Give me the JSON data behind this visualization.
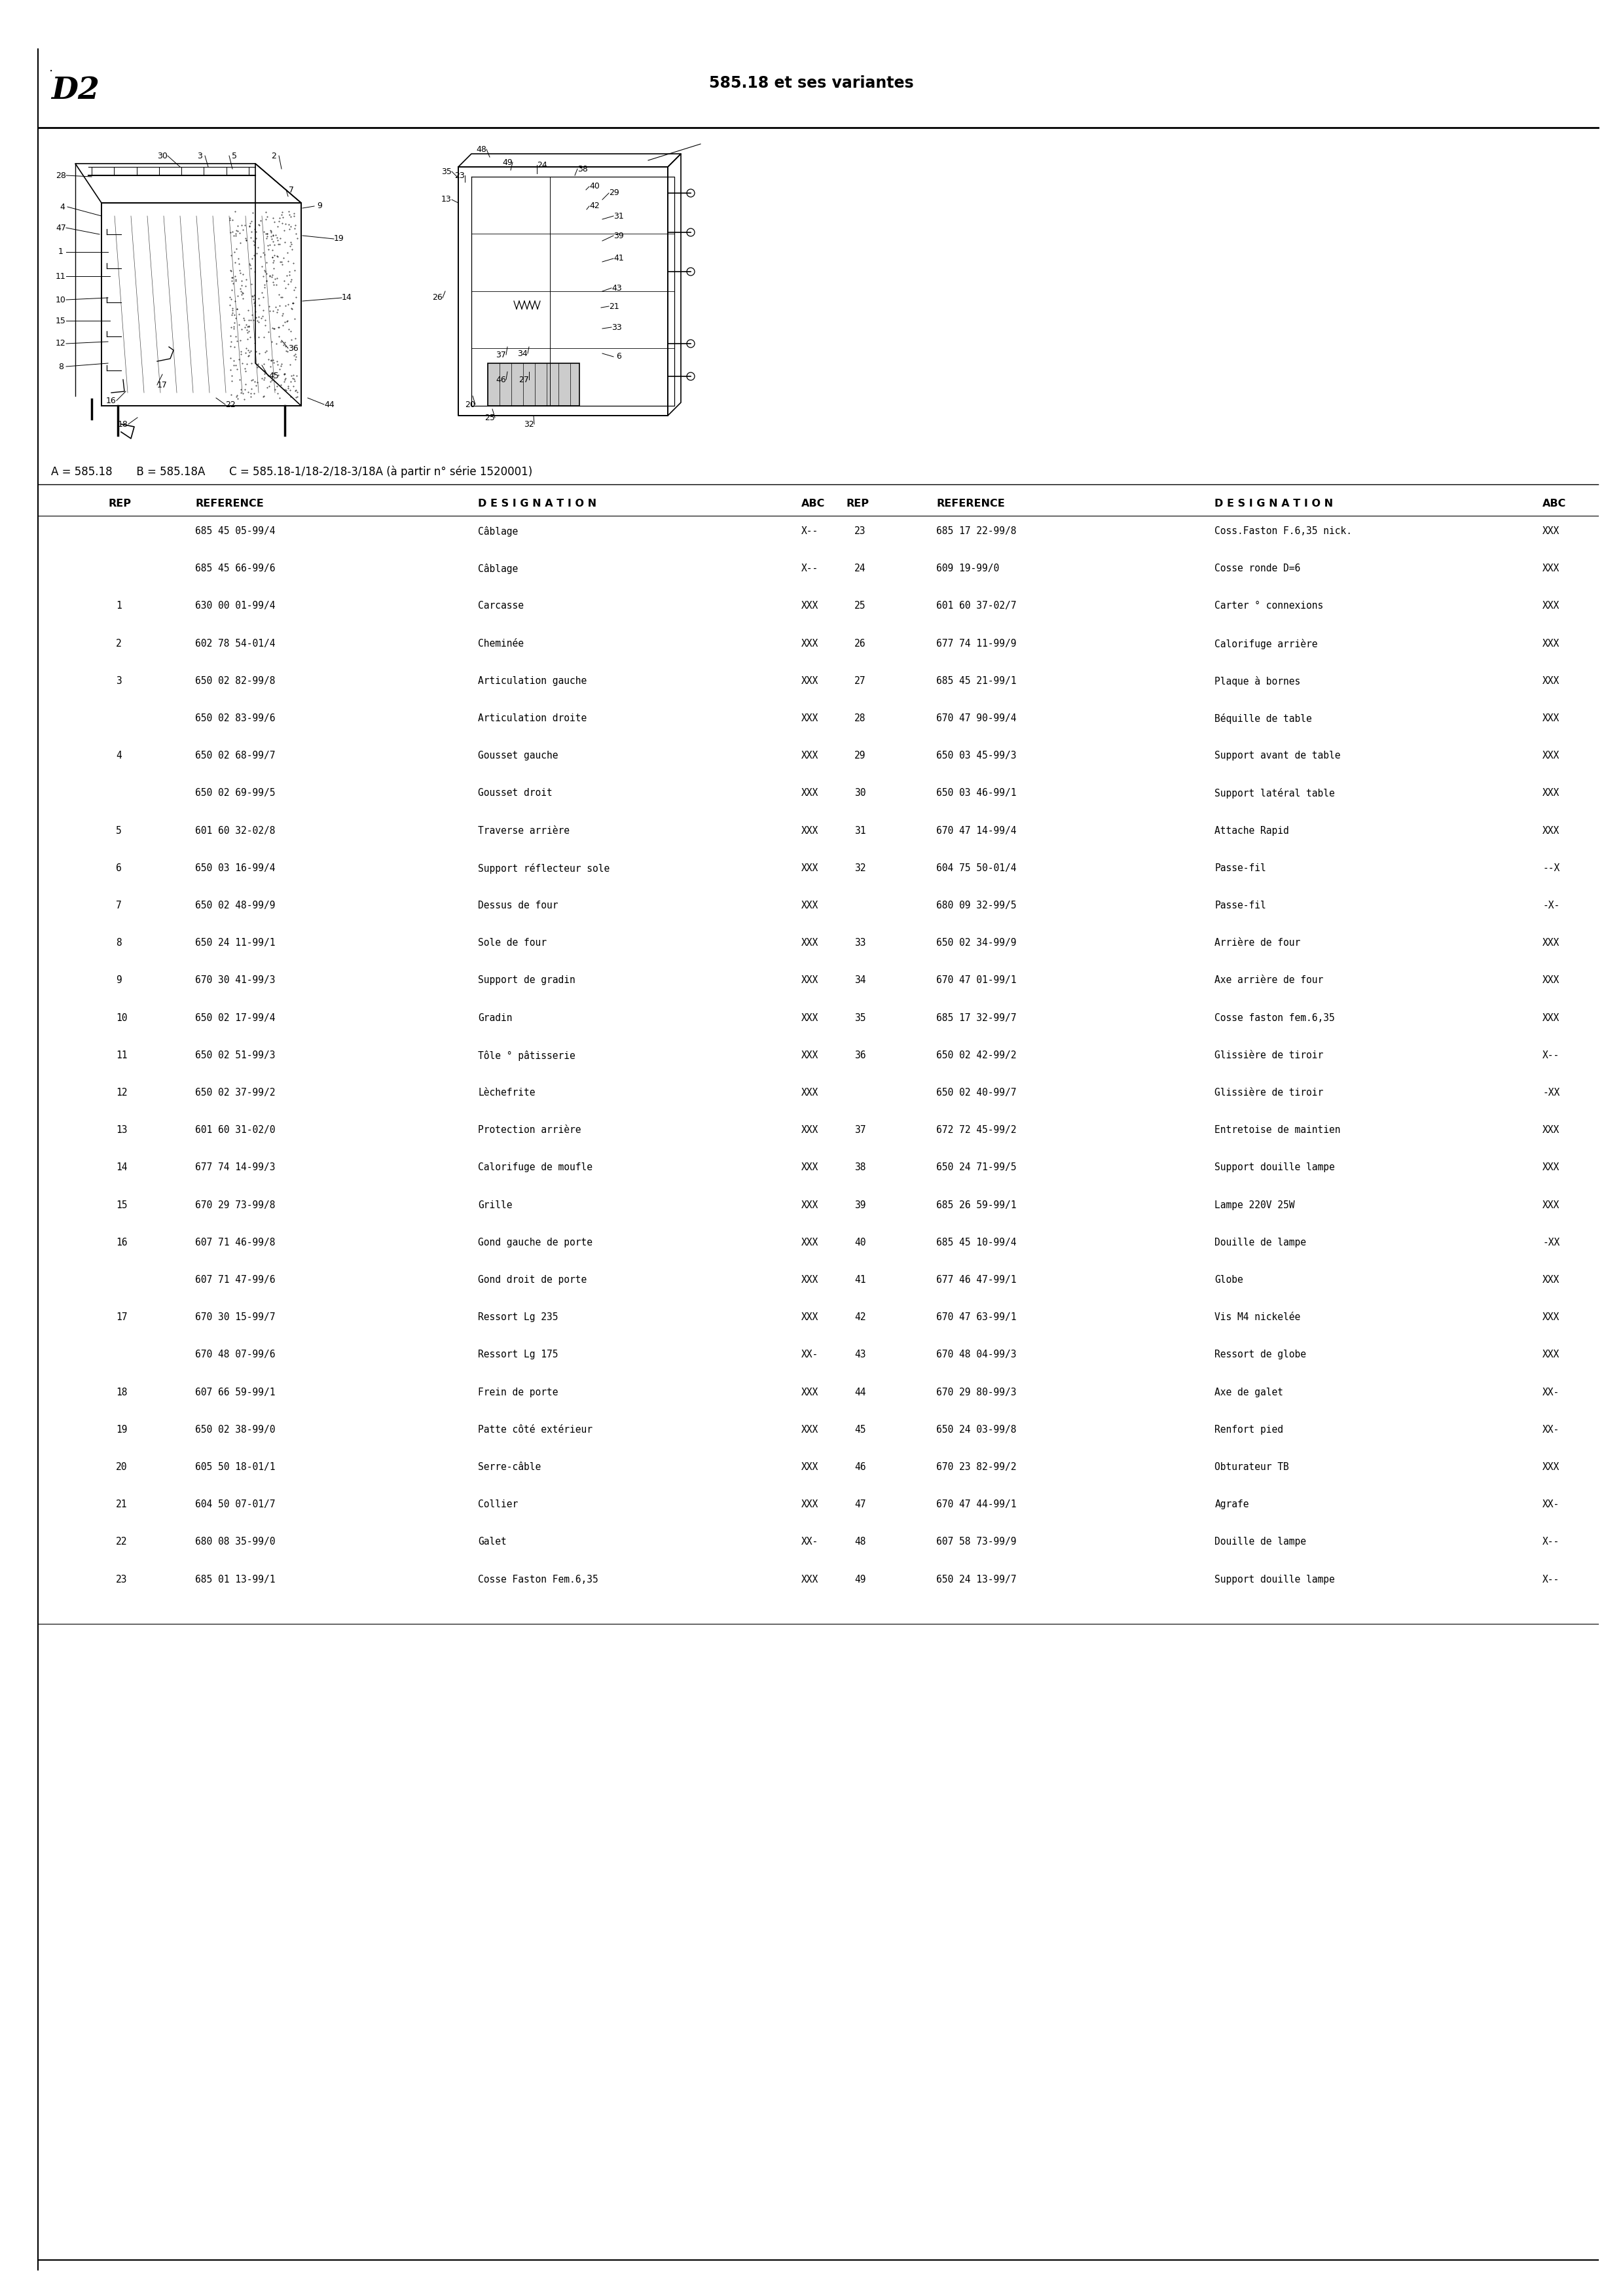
{
  "page_label": "D2",
  "title": "585.18 et ses variantes",
  "subtitle": "A = 585.18       B = 585.18A       C = 585.18-1/18-2/18-3/18A (à partir n° série 1520001)",
  "parts": [
    [
      "",
      "685 45 05-99/4",
      "Câblage",
      "X--",
      "23",
      "685 17 22-99/8",
      "Coss.Faston F.6,35 nick.XXX"
    ],
    [
      "",
      "685 45 66-99/6",
      "Câblage",
      "X--",
      "24",
      "609 19-99/0",
      "Cosse ronde D=6           XXX"
    ],
    [
      "1",
      "630 00 01-99/4",
      "Carcasse",
      "XXX",
      "25",
      "601 60 37-02/7",
      "Carter ° connexions       XXX"
    ],
    [
      "2",
      "602 78 54-01/4",
      "Cheminée",
      "XXX",
      "26",
      "677 74 11-99/9",
      "Calorifuge arrière        XXX"
    ],
    [
      "3",
      "650 02 82-99/8",
      "Articulation gauche",
      "XXX",
      "27",
      "685 45 21-99/1",
      "Plaque à bornes           XXX"
    ],
    [
      "",
      "650 02 83-99/6",
      "Articulation droite",
      "XXX",
      "28",
      "670 47 90-99/4",
      "Béquille de table         XXX"
    ],
    [
      "4",
      "650 02 68-99/7",
      "Gousset gauche",
      "XXX",
      "29",
      "650 03 45-99/3",
      "Support avant de table    XXX"
    ],
    [
      "",
      "650 02 69-99/5",
      "Gousset droit",
      "XXX",
      "30",
      "650 03 46-99/1",
      "Support latéral table     XXX"
    ],
    [
      "5",
      "601 60 32-02/8",
      "Traverse arrière",
      "XXX",
      "31",
      "670 47 14-99/4",
      "Attache Rapid             XXX"
    ],
    [
      "6",
      "650 03 16-99/4",
      "Support réflecteur sole XXX",
      "",
      "32",
      "604 75 50-01/4",
      "Passe-fil                 --X"
    ],
    [
      "7",
      "650 02 48-99/9",
      "Dessus de four",
      "XXX",
      "",
      "680 09 32-99/5",
      "Passe-fil                 -X-"
    ],
    [
      "8",
      "650 24 11-99/1",
      "Sole de four",
      "XXX",
      "33",
      "650 02 34-99/9",
      "Arrière de four           XXX"
    ],
    [
      "9",
      "670 30 41-99/3",
      "Support de gradin",
      "XXX",
      "34",
      "670 47 01-99/1",
      "Axe arrière de four       XXX"
    ],
    [
      "10",
      "650 02 17-99/4",
      "Gradin",
      "XXX",
      "35",
      "685 17 32-99/7",
      "Cosse faston fem.6,35     XXX"
    ],
    [
      "11",
      "650 02 51-99/3",
      "Tôle ° pâtisserie",
      "XXX",
      "36",
      "650 02 42-99/2",
      "Glissière de tiroir       X--"
    ],
    [
      "12",
      "650 02 37-99/2",
      "Lèchefrite",
      "XXX",
      "",
      "650 02 40-99/7",
      "Glissière de tiroir       -XX"
    ],
    [
      "13",
      "601 60 31-02/0",
      "Protection arrière",
      "XXX",
      "37",
      "672 72 45-99/2",
      "Entretoise de maintien    XXX"
    ],
    [
      "14",
      "677 74 14-99/3",
      "Calorifuge de moufle",
      "XXX",
      "38",
      "650 24 71-99/5",
      "Support douille lampe     XXX"
    ],
    [
      "15",
      "670 29 73-99/8",
      "Grille",
      "XXX",
      "39",
      "685 26 59-99/1",
      "Lampe 220V 25W            XXX"
    ],
    [
      "16",
      "607 71 46-99/8",
      "Gond gauche de porte",
      "XXX",
      "40",
      "685 45 10-99/4",
      "Douille de lampe          -XX"
    ],
    [
      "",
      "607 71 47-99/6",
      "Gond droit de porte",
      "XXX",
      "41",
      "677 46 47-99/1",
      "Globe                     XXX"
    ],
    [
      "17",
      "670 30 15-99/7",
      "Ressort Lg 235",
      "XXX",
      "42",
      "670 47 63-99/1",
      "Vis M4 nickelée           XXX"
    ],
    [
      "",
      "670 48 07-99/6",
      "Ressort Lg 175",
      "XX-",
      "43",
      "670 48 04-99/3",
      "Ressort de globe          XXX"
    ],
    [
      "18",
      "607 66 59-99/1",
      "Frein de porte",
      "XXX",
      "44",
      "670 29 80-99/3",
      "Axe de galet              XX-"
    ],
    [
      "19",
      "650 02 38-99/0",
      "Patte côté extérieur",
      "XXX",
      "45",
      "650 24 03-99/8",
      "Renfort pied              XX-"
    ],
    [
      "20",
      "605 50 18-01/1",
      "Serre-câble",
      "XXX",
      "46",
      "670 23 82-99/2",
      "Obturateur TB             XXX"
    ],
    [
      "21",
      "604 50 07-01/7",
      "Collier",
      "XXX",
      "47",
      "670 47 44-99/1",
      "Agrafe                    XX-"
    ],
    [
      "22",
      "680 08 35-99/0",
      "Galet",
      "XX-",
      "48",
      "607 58 73-99/9",
      "Douille de lampe          X--"
    ],
    [
      "23",
      "685 01 13-99/1",
      "Cosse Faston Fem.6,35",
      "XXX",
      "49",
      "650 24 13-99/7",
      "Support douille lampe     X--"
    ]
  ],
  "parts_clean": [
    [
      "",
      "685 45 05-99/4",
      "Câblage",
      "X--",
      "23",
      "685 17 22-99/8",
      "Coss.Faston F.6,35 nick.",
      "XXX"
    ],
    [
      "",
      "685 45 66-99/6",
      "Câblage",
      "X--",
      "24",
      "609 19-99/0",
      "Cosse ronde D=6",
      "XXX"
    ],
    [
      "1",
      "630 00 01-99/4",
      "Carcasse",
      "XXX",
      "25",
      "601 60 37-02/7",
      "Carter ° connexions",
      "XXX"
    ],
    [
      "2",
      "602 78 54-01/4",
      "Cheminée",
      "XXX",
      "26",
      "677 74 11-99/9",
      "Calorifuge arrière",
      "XXX"
    ],
    [
      "3",
      "650 02 82-99/8",
      "Articulation gauche",
      "XXX",
      "27",
      "685 45 21-99/1",
      "Plaque à bornes",
      "XXX"
    ],
    [
      "",
      "650 02 83-99/6",
      "Articulation droite",
      "XXX",
      "28",
      "670 47 90-99/4",
      "Béquille de table",
      "XXX"
    ],
    [
      "4",
      "650 02 68-99/7",
      "Gousset gauche",
      "XXX",
      "29",
      "650 03 45-99/3",
      "Support avant de table",
      "XXX"
    ],
    [
      "",
      "650 02 69-99/5",
      "Gousset droit",
      "XXX",
      "30",
      "650 03 46-99/1",
      "Support latéral table",
      "XXX"
    ],
    [
      "5",
      "601 60 32-02/8",
      "Traverse arrière",
      "XXX",
      "31",
      "670 47 14-99/4",
      "Attache Rapid",
      "XXX"
    ],
    [
      "6",
      "650 03 16-99/4",
      "Support réflecteur sole",
      "XXX",
      "32",
      "604 75 50-01/4",
      "Passe-fil",
      "--X"
    ],
    [
      "7",
      "650 02 48-99/9",
      "Dessus de four",
      "XXX",
      "",
      "680 09 32-99/5",
      "Passe-fil",
      "-X-"
    ],
    [
      "8",
      "650 24 11-99/1",
      "Sole de four",
      "XXX",
      "33",
      "650 02 34-99/9",
      "Arrière de four",
      "XXX"
    ],
    [
      "9",
      "670 30 41-99/3",
      "Support de gradin",
      "XXX",
      "34",
      "670 47 01-99/1",
      "Axe arrière de four",
      "XXX"
    ],
    [
      "10",
      "650 02 17-99/4",
      "Gradin",
      "XXX",
      "35",
      "685 17 32-99/7",
      "Cosse faston fem.6,35",
      "XXX"
    ],
    [
      "11",
      "650 02 51-99/3",
      "Tôle ° pâtisserie",
      "XXX",
      "36",
      "650 02 42-99/2",
      "Glissière de tiroir",
      "X--"
    ],
    [
      "12",
      "650 02 37-99/2",
      "Lèchefrite",
      "XXX",
      "",
      "650 02 40-99/7",
      "Glissière de tiroir",
      "-XX"
    ],
    [
      "13",
      "601 60 31-02/0",
      "Protection arrière",
      "XXX",
      "37",
      "672 72 45-99/2",
      "Entretoise de maintien",
      "XXX"
    ],
    [
      "14",
      "677 74 14-99/3",
      "Calorifuge de moufle",
      "XXX",
      "38",
      "650 24 71-99/5",
      "Support douille lampe",
      "XXX"
    ],
    [
      "15",
      "670 29 73-99/8",
      "Grille",
      "XXX",
      "39",
      "685 26 59-99/1",
      "Lampe 220V 25W",
      "XXX"
    ],
    [
      "16",
      "607 71 46-99/8",
      "Gond gauche de porte",
      "XXX",
      "40",
      "685 45 10-99/4",
      "Douille de lampe",
      "-XX"
    ],
    [
      "",
      "607 71 47-99/6",
      "Gond droit de porte",
      "XXX",
      "41",
      "677 46 47-99/1",
      "Globe",
      "XXX"
    ],
    [
      "17",
      "670 30 15-99/7",
      "Ressort Lg 235",
      "XXX",
      "42",
      "670 47 63-99/1",
      "Vis M4 nickelée",
      "XXX"
    ],
    [
      "",
      "670 48 07-99/6",
      "Ressort Lg 175",
      "XX-",
      "43",
      "670 48 04-99/3",
      "Ressort de globe",
      "XXX"
    ],
    [
      "18",
      "607 66 59-99/1",
      "Frein de porte",
      "XXX",
      "44",
      "670 29 80-99/3",
      "Axe de galet",
      "XX-"
    ],
    [
      "19",
      "650 02 38-99/0",
      "Patte côté extérieur",
      "XXX",
      "45",
      "650 24 03-99/8",
      "Renfort pied",
      "XX-"
    ],
    [
      "20",
      "605 50 18-01/1",
      "Serre-câble",
      "XXX",
      "46",
      "670 23 82-99/2",
      "Obturateur TB",
      "XXX"
    ],
    [
      "21",
      "604 50 07-01/7",
      "Collier",
      "XXX",
      "47",
      "670 47 44-99/1",
      "Agrafe",
      "XX-"
    ],
    [
      "22",
      "680 08 35-99/0",
      "Galet",
      "XX-",
      "48",
      "607 58 73-99/9",
      "Douille de lampe",
      "X--"
    ],
    [
      "23",
      "685 01 13-99/1",
      "Cosse Faston Fem.6,35",
      "XXX",
      "49",
      "650 24 13-99/7",
      "Support douille lampe",
      "X--"
    ]
  ],
  "bg_color": "#ffffff",
  "text_color": "#000000"
}
